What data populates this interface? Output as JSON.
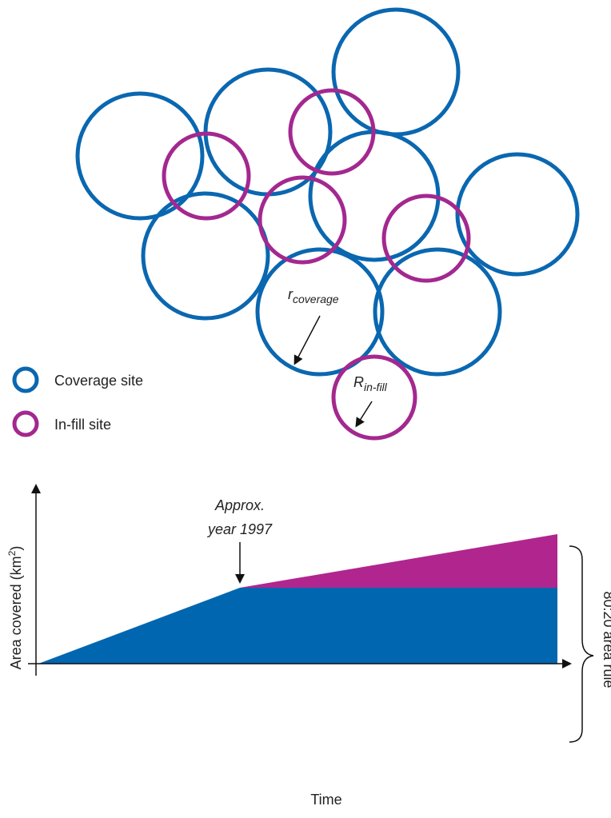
{
  "legend": [
    {
      "label": "Coverage site"
    },
    {
      "label": "In-fill site"
    }
  ],
  "annotations": {
    "coverage_radius": {
      "symbol": "r",
      "subscript": "coverage"
    },
    "infill_radius": {
      "symbol": "R",
      "subscript": "in-fill"
    },
    "milestone": [
      "Approx.",
      "year 1997"
    ],
    "brace": "80:20 area rule"
  },
  "axes": {
    "y_label": {
      "text": "Area covered (km",
      "superscript": "2",
      "close": ")"
    },
    "x_label": "Time"
  }
}
